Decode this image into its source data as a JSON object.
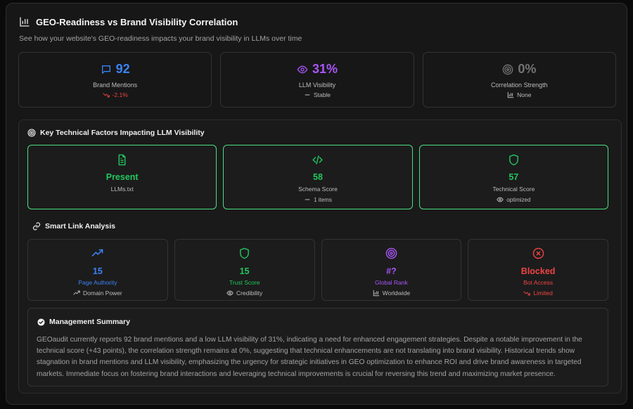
{
  "header": {
    "title": "GEO-Readiness vs Brand Visibility Correlation",
    "subtitle": "See how your website's GEO-readiness impacts your brand visibility in LLMs over time",
    "icon": "bar-chart-icon"
  },
  "stats": [
    {
      "value": "92",
      "label": "Brand Mentions",
      "sub": "-2.1%",
      "icon": "message-icon",
      "sub_icon": "trending-down-icon",
      "color": "#3b82f6",
      "sub_color": "#ef4444"
    },
    {
      "value": "31%",
      "label": "LLM Visibility",
      "sub": "Stable",
      "icon": "eye-icon",
      "sub_icon": "minus-icon",
      "color": "#a855f7",
      "sub_color": "#bdbdbd"
    },
    {
      "value": "0%",
      "label": "Correlation Strength",
      "sub": "None",
      "icon": "target-icon",
      "sub_icon": "bar-chart-icon",
      "color": "#737373",
      "sub_color": "#bdbdbd"
    }
  ],
  "factors": {
    "title": "Key Technical Factors Impacting LLM Visibility",
    "icon": "target-icon",
    "items": [
      {
        "value": "Present",
        "label": "LLMs.txt",
        "sub": "",
        "icon": "file-text-icon"
      },
      {
        "value": "58",
        "label": "Schema Score",
        "sub": "1 items",
        "icon": "code-icon",
        "sub_icon": "minus-icon"
      },
      {
        "value": "57",
        "label": "Technical Score",
        "sub": "optimized",
        "icon": "shield-icon",
        "sub_icon": "eye-icon"
      }
    ]
  },
  "links": {
    "title": "Smart Link Analysis",
    "icon": "link-icon",
    "items": [
      {
        "value": "15",
        "label": "Page Authority",
        "sub": "Domain Power",
        "icon": "trending-up-icon",
        "sub_icon": "trending-up-icon",
        "color": "#3b82f6"
      },
      {
        "value": "15",
        "label": "Trust Score",
        "sub": "Credibility",
        "icon": "shield-icon",
        "sub_icon": "eye-icon",
        "color": "#22c55e"
      },
      {
        "value": "#?",
        "label": "Global Rank",
        "sub": "Worldwide",
        "icon": "target-icon",
        "sub_icon": "bar-chart-icon",
        "color": "#a855f7"
      },
      {
        "value": "Blocked",
        "label": "Bot Access",
        "sub": "Limited",
        "icon": "x-circle-icon",
        "sub_icon": "trending-down-icon",
        "color": "#ef4444"
      }
    ]
  },
  "summary": {
    "title": "Management Summary",
    "icon": "check-circle-icon",
    "text": "GEOaudit currently reports 92 brand mentions and a low LLM visibility of 31%, indicating a need for enhanced engagement strategies. Despite a notable improvement in the technical score (+43 points), the correlation strength remains at 0%, suggesting that technical enhancements are not translating into brand visibility. Historical trends show stagnation in brand mentions and LLM visibility, emphasizing the urgency for strategic initiatives in GEO optimization to enhance ROI and drive brand awareness in targeted markets. Immediate focus on fostering brand interactions and leveraging technical improvements is crucial for reversing this trend and maximizing market presence."
  }
}
